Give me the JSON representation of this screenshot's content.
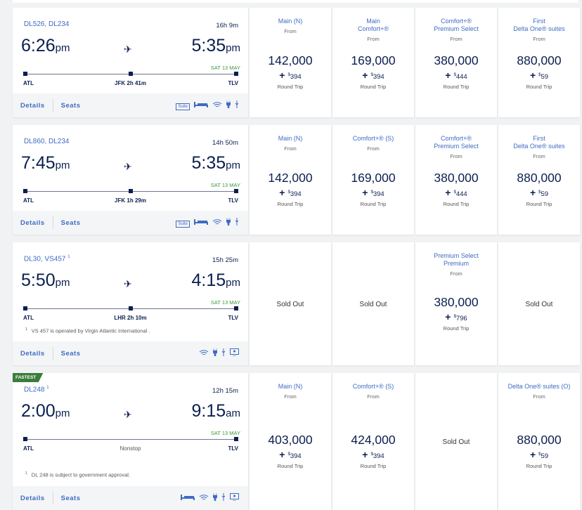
{
  "labels": {
    "from": "From",
    "round_trip": "Round Trip",
    "sold_out": "Sold Out",
    "details": "Details",
    "seats": "Seats",
    "plus": "+",
    "dollar": "$",
    "suite_icon_text": "Suite"
  },
  "flights": [
    {
      "flight_numbers": "DL526, DL234",
      "footnote_mark": "",
      "duration": "16h 9m",
      "depart_time": "6:26",
      "depart_ampm": "pm",
      "arrive_time": "5:35",
      "arrive_ampm": "pm",
      "arrive_date": "SAT 13 MAY",
      "origin": "ATL",
      "connection": "JFK 2h 41m",
      "destination": "TLV",
      "note": "",
      "badge": "",
      "amenities": [
        "suite-icon",
        "flat-bed-icon",
        "wifi-icon",
        "power-icon",
        "usb-icon"
      ],
      "fares": [
        {
          "title": [
            "Main (N)"
          ],
          "points": "142,000",
          "fee": "394"
        },
        {
          "title": [
            "Main",
            "Comfort+®"
          ],
          "points": "169,000",
          "fee": "394"
        },
        {
          "title": [
            "Comfort+®",
            "Premium Select"
          ],
          "points": "380,000",
          "fee": "444"
        },
        {
          "title": [
            "First",
            "Delta One® suites"
          ],
          "points": "880,000",
          "fee": "59"
        }
      ]
    },
    {
      "flight_numbers": "DL860, DL234",
      "footnote_mark": "",
      "duration": "14h 50m",
      "depart_time": "7:45",
      "depart_ampm": "pm",
      "arrive_time": "5:35",
      "arrive_ampm": "pm",
      "arrive_date": "SAT 13 MAY",
      "origin": "ATL",
      "connection": "JFK 1h 29m",
      "destination": "TLV",
      "note": "",
      "badge": "",
      "amenities": [
        "suite-icon",
        "flat-bed-icon",
        "wifi-icon",
        "power-icon",
        "usb-icon"
      ],
      "fares": [
        {
          "title": [
            "Main (N)"
          ],
          "points": "142,000",
          "fee": "394"
        },
        {
          "title": [
            "Comfort+® (S)"
          ],
          "points": "169,000",
          "fee": "394"
        },
        {
          "title": [
            "Comfort+®",
            "Premium Select"
          ],
          "points": "380,000",
          "fee": "444"
        },
        {
          "title": [
            "First",
            "Delta One® suites"
          ],
          "points": "880,000",
          "fee": "59"
        }
      ]
    },
    {
      "flight_numbers": "DL30, VS457",
      "footnote_mark": "1",
      "duration": "15h 25m",
      "depart_time": "5:50",
      "depart_ampm": "pm",
      "arrive_time": "4:15",
      "arrive_ampm": "pm",
      "arrive_date": "SAT 13 MAY",
      "origin": "ATL",
      "connection": "LHR 2h 10m",
      "destination": "TLV",
      "note": "VS 457 is operated by Virgin Atlantic International .",
      "badge": "",
      "amenities": [
        "wifi-icon",
        "power-icon",
        "usb-icon",
        "seatback-screen-icon"
      ],
      "fares": [
        {
          "sold_out": true
        },
        {
          "sold_out": true
        },
        {
          "title": [
            "Premium Select",
            "Premium"
          ],
          "points": "380,000",
          "fee": "796"
        },
        {
          "sold_out": true
        }
      ]
    },
    {
      "flight_numbers": "DL248",
      "footnote_mark": "1",
      "duration": "12h 15m",
      "depart_time": "2:00",
      "depart_ampm": "pm",
      "arrive_time": "9:15",
      "arrive_ampm": "am",
      "arrive_date": "SAT 13 MAY",
      "origin": "ATL",
      "connection": "Nonstop",
      "destination": "TLV",
      "note": "DL 248 is subject to government approval.",
      "badge": "FASTEST",
      "amenities": [
        "flat-bed-icon",
        "wifi-icon",
        "power-icon",
        "usb-icon",
        "seatback-screen-icon"
      ],
      "fares": [
        {
          "title": [
            "Main (N)"
          ],
          "points": "403,000",
          "fee": "394"
        },
        {
          "title": [
            "Comfort+® (S)"
          ],
          "points": "424,000",
          "fee": "394"
        },
        {
          "sold_out": true
        },
        {
          "title": [
            "Delta One® suites (O)"
          ],
          "points": "880,000",
          "fee": "59"
        }
      ]
    }
  ]
}
